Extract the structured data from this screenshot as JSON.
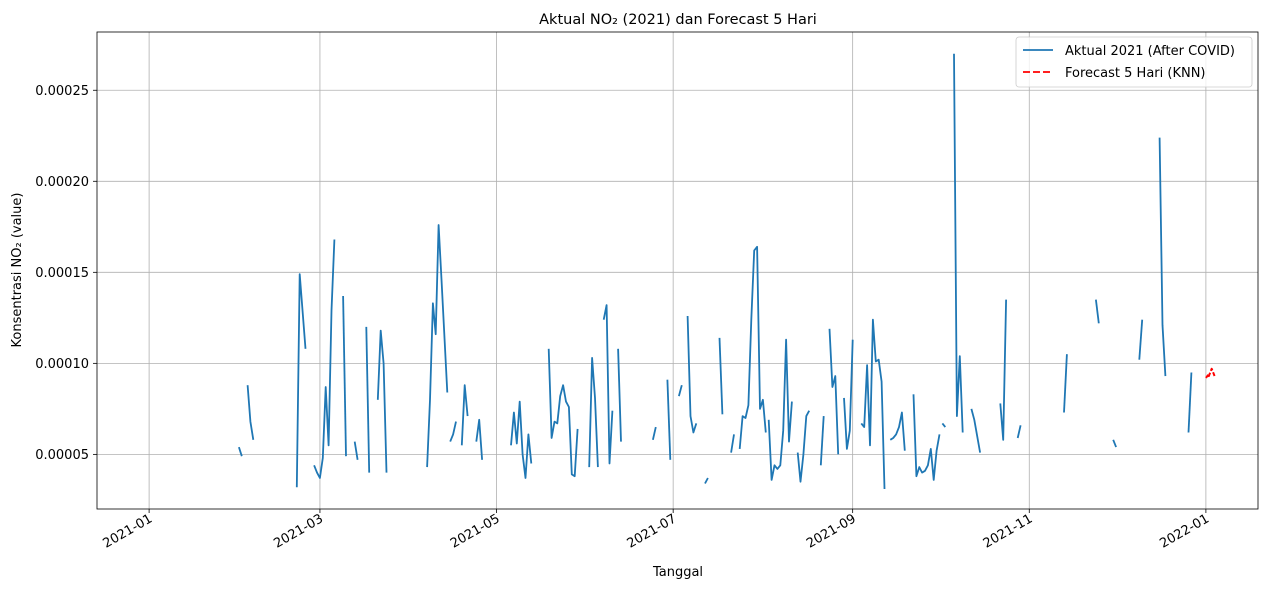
{
  "chart_data": {
    "type": "line",
    "title": "Aktual NO₂ (2021) dan Forecast 5 Hari",
    "xlabel": "Tanggal",
    "ylabel": "Konsentrasi NO₂ (value)",
    "xlim": [
      "2020-12-14",
      "2022-01-19"
    ],
    "ylim": [
      2e-05,
      0.000282
    ],
    "x_ticks": [
      "2021-01",
      "2021-03",
      "2021-05",
      "2021-07",
      "2021-09",
      "2021-11",
      "2022-01"
    ],
    "y_ticks": [
      "0.00005",
      "0.00010",
      "0.00015",
      "0.00020",
      "0.00025"
    ],
    "grid": true,
    "legend_position": "top-right",
    "series": [
      {
        "name": "Aktual 2021 (After COVID)",
        "color": "#1f77b4",
        "style": "solid",
        "segments": [
          [
            [
              "2021-02-01",
              5.4e-05
            ],
            [
              "2021-02-02",
              4.9e-05
            ]
          ],
          [
            [
              "2021-02-04",
              8.8e-05
            ],
            [
              "2021-02-05",
              6.8e-05
            ],
            [
              "2021-02-06",
              5.8e-05
            ]
          ],
          [
            [
              "2021-02-21",
              3.2e-05
            ],
            [
              "2021-02-22",
              0.000149
            ],
            [
              "2021-02-24",
              0.000108
            ]
          ],
          [
            [
              "2021-02-27",
              4.4e-05
            ],
            [
              "2021-02-28",
              4e-05
            ],
            [
              "2021-03-01",
              3.7e-05
            ],
            [
              "2021-03-02",
              4.8e-05
            ],
            [
              "2021-03-03",
              8.7e-05
            ],
            [
              "2021-03-04",
              5.5e-05
            ],
            [
              "2021-03-05",
              0.000129
            ],
            [
              "2021-03-06",
              0.000168
            ]
          ],
          [
            [
              "2021-03-09",
              0.000137
            ],
            [
              "2021-03-10",
              4.9e-05
            ]
          ],
          [
            [
              "2021-03-13",
              5.7e-05
            ],
            [
              "2021-03-14",
              4.7e-05
            ]
          ],
          [
            [
              "2021-03-17",
              0.00012
            ],
            [
              "2021-03-18",
              4e-05
            ]
          ],
          [
            [
              "2021-03-21",
              8e-05
            ],
            [
              "2021-03-22",
              0.000118
            ],
            [
              "2021-03-23",
              0.0001
            ],
            [
              "2021-03-24",
              4e-05
            ]
          ],
          [
            [
              "2021-04-07",
              4.3e-05
            ],
            [
              "2021-04-08",
              8e-05
            ],
            [
              "2021-04-09",
              0.000133
            ],
            [
              "2021-04-10",
              0.000116
            ],
            [
              "2021-04-11",
              0.000176
            ],
            [
              "2021-04-12",
              0.000146
            ],
            [
              "2021-04-14",
              8.4e-05
            ]
          ],
          [
            [
              "2021-04-15",
              5.7e-05
            ],
            [
              "2021-04-16",
              6.1e-05
            ],
            [
              "2021-04-17",
              6.8e-05
            ]
          ],
          [
            [
              "2021-04-19",
              5.5e-05
            ],
            [
              "2021-04-20",
              8.8e-05
            ],
            [
              "2021-04-21",
              7.1e-05
            ]
          ],
          [
            [
              "2021-04-24",
              5.7e-05
            ],
            [
              "2021-04-25",
              6.9e-05
            ],
            [
              "2021-04-26",
              4.7e-05
            ]
          ],
          [
            [
              "2021-05-06",
              5.5e-05
            ],
            [
              "2021-05-07",
              7.3e-05
            ],
            [
              "2021-05-08",
              5.6e-05
            ],
            [
              "2021-05-09",
              7.9e-05
            ],
            [
              "2021-05-10",
              5e-05
            ],
            [
              "2021-05-11",
              3.7e-05
            ],
            [
              "2021-05-12",
              6.1e-05
            ],
            [
              "2021-05-13",
              4.5e-05
            ]
          ],
          [
            [
              "2021-05-19",
              0.000108
            ],
            [
              "2021-05-20",
              5.9e-05
            ],
            [
              "2021-05-21",
              6.8e-05
            ],
            [
              "2021-05-22",
              6.7e-05
            ],
            [
              "2021-05-23",
              8.2e-05
            ],
            [
              "2021-05-24",
              8.8e-05
            ],
            [
              "2021-05-25",
              7.9e-05
            ],
            [
              "2021-05-26",
              7.6e-05
            ],
            [
              "2021-05-27",
              3.9e-05
            ],
            [
              "2021-05-28",
              3.8e-05
            ],
            [
              "2021-05-29",
              6.4e-05
            ]
          ],
          [
            [
              "2021-06-02",
              4.3e-05
            ],
            [
              "2021-06-03",
              0.000103
            ],
            [
              "2021-06-04",
              8.1e-05
            ],
            [
              "2021-06-05",
              4.3e-05
            ]
          ],
          [
            [
              "2021-06-07",
              0.000124
            ],
            [
              "2021-06-08",
              0.000132
            ],
            [
              "2021-06-09",
              4.5e-05
            ],
            [
              "2021-06-10",
              7.4e-05
            ]
          ],
          [
            [
              "2021-06-12",
              0.000108
            ],
            [
              "2021-06-13",
              5.7e-05
            ]
          ],
          [
            [
              "2021-06-24",
              5.8e-05
            ],
            [
              "2021-06-25",
              6.5e-05
            ]
          ],
          [
            [
              "2021-06-29",
              9.1e-05
            ],
            [
              "2021-06-30",
              4.7e-05
            ]
          ],
          [
            [
              "2021-07-03",
              8.2e-05
            ],
            [
              "2021-07-04",
              8.8e-05
            ]
          ],
          [
            [
              "2021-07-06",
              0.000126
            ],
            [
              "2021-07-07",
              7.1e-05
            ],
            [
              "2021-07-08",
              6.2e-05
            ],
            [
              "2021-07-09",
              6.7e-05
            ]
          ],
          [
            [
              "2021-07-12",
              3.4e-05
            ],
            [
              "2021-07-13",
              3.7e-05
            ]
          ],
          [
            [
              "2021-07-17",
              0.000114
            ],
            [
              "2021-07-18",
              7.2e-05
            ]
          ],
          [
            [
              "2021-07-21",
              5.1e-05
            ],
            [
              "2021-07-22",
              6.1e-05
            ]
          ],
          [
            [
              "2021-07-24",
              5.3e-05
            ],
            [
              "2021-07-25",
              7.1e-05
            ],
            [
              "2021-07-26",
              7e-05
            ],
            [
              "2021-07-27",
              7.7e-05
            ],
            [
              "2021-07-28",
              0.000124
            ],
            [
              "2021-07-29",
              0.000162
            ],
            [
              "2021-07-30",
              0.000164
            ],
            [
              "2021-07-31",
              7.5e-05
            ],
            [
              "2021-08-01",
              8e-05
            ],
            [
              "2021-08-02",
              6.2e-05
            ]
          ],
          [
            [
              "2021-08-03",
              6.9e-05
            ],
            [
              "2021-08-04",
              3.6e-05
            ],
            [
              "2021-08-05",
              4.4e-05
            ],
            [
              "2021-08-06",
              4.2e-05
            ],
            [
              "2021-08-07",
              4.4e-05
            ],
            [
              "2021-08-08",
              6.3e-05
            ],
            [
              "2021-08-09",
              0.000113
            ],
            [
              "2021-08-10",
              5.7e-05
            ],
            [
              "2021-08-11",
              7.9e-05
            ]
          ],
          [
            [
              "2021-08-13",
              5.1e-05
            ],
            [
              "2021-08-14",
              3.5e-05
            ],
            [
              "2021-08-15",
              5e-05
            ],
            [
              "2021-08-16",
              7.1e-05
            ],
            [
              "2021-08-17",
              7.4e-05
            ]
          ],
          [
            [
              "2021-08-21",
              4.4e-05
            ],
            [
              "2021-08-22",
              7.1e-05
            ]
          ],
          [
            [
              "2021-08-24",
              0.000119
            ],
            [
              "2021-08-25",
              8.7e-05
            ],
            [
              "2021-08-26",
              9.3e-05
            ],
            [
              "2021-08-27",
              5e-05
            ]
          ],
          [
            [
              "2021-08-29",
              8.1e-05
            ],
            [
              "2021-08-30",
              5.3e-05
            ],
            [
              "2021-08-31",
              6.3e-05
            ],
            [
              "2021-09-01",
              0.000113
            ]
          ],
          [
            [
              "2021-09-04",
              6.7e-05
            ],
            [
              "2021-09-05",
              6.5e-05
            ],
            [
              "2021-09-06",
              9.9e-05
            ],
            [
              "2021-09-07",
              5.5e-05
            ],
            [
              "2021-09-08",
              0.000124
            ],
            [
              "2021-09-09",
              0.000101
            ],
            [
              "2021-09-10",
              0.000102
            ],
            [
              "2021-09-11",
              9e-05
            ],
            [
              "2021-09-12",
              3.1e-05
            ]
          ],
          [
            [
              "2021-09-14",
              5.8e-05
            ],
            [
              "2021-09-15",
              5.9e-05
            ],
            [
              "2021-09-16",
              6.1e-05
            ],
            [
              "2021-09-17",
              6.5e-05
            ],
            [
              "2021-09-18",
              7.3e-05
            ],
            [
              "2021-09-19",
              5.2e-05
            ]
          ],
          [
            [
              "2021-09-22",
              8.3e-05
            ],
            [
              "2021-09-23",
              3.8e-05
            ],
            [
              "2021-09-24",
              4.3e-05
            ],
            [
              "2021-09-25",
              4e-05
            ],
            [
              "2021-09-26",
              4.1e-05
            ],
            [
              "2021-09-27",
              4.4e-05
            ],
            [
              "2021-09-28",
              5.3e-05
            ],
            [
              "2021-09-29",
              3.6e-05
            ],
            [
              "2021-09-30",
              5.2e-05
            ],
            [
              "2021-10-01",
              6.1e-05
            ]
          ],
          [
            [
              "2021-10-02",
              6.7e-05
            ],
            [
              "2021-10-03",
              6.5e-05
            ]
          ],
          [
            [
              "2021-10-06",
              0.00027
            ],
            [
              "2021-10-07",
              7.1e-05
            ],
            [
              "2021-10-08",
              0.000104
            ],
            [
              "2021-10-09",
              6.2e-05
            ]
          ],
          [
            [
              "2021-10-12",
              7.5e-05
            ],
            [
              "2021-10-13",
              6.9e-05
            ],
            [
              "2021-10-14",
              6e-05
            ],
            [
              "2021-10-15",
              5.1e-05
            ]
          ],
          [
            [
              "2021-10-22",
              7.8e-05
            ],
            [
              "2021-10-23",
              5.8e-05
            ],
            [
              "2021-10-24",
              0.000135
            ]
          ],
          [
            [
              "2021-10-28",
              5.9e-05
            ],
            [
              "2021-10-29",
              6.6e-05
            ]
          ],
          [
            [
              "2021-11-13",
              7.3e-05
            ],
            [
              "2021-11-14",
              0.000105
            ]
          ],
          [
            [
              "2021-11-24",
              0.000135
            ],
            [
              "2021-11-25",
              0.000122
            ]
          ],
          [
            [
              "2021-11-30",
              5.8e-05
            ],
            [
              "2021-12-01",
              5.4e-05
            ]
          ],
          [
            [
              "2021-12-09",
              0.000102
            ],
            [
              "2021-12-10",
              0.000124
            ]
          ],
          [
            [
              "2021-12-16",
              0.000224
            ],
            [
              "2021-12-17",
              0.000121
            ],
            [
              "2021-12-18",
              9.3e-05
            ]
          ],
          [
            [
              "2021-12-26",
              6.2e-05
            ],
            [
              "2021-12-27",
              9.5e-05
            ]
          ]
        ]
      },
      {
        "name": "Forecast 5 Hari (KNN)",
        "color": "#ff0000",
        "style": "dashed",
        "segments": [
          [
            [
              "2022-01-01",
              9.2e-05
            ],
            [
              "2022-01-02",
              9.4e-05
            ],
            [
              "2022-01-02",
              9.3e-05
            ],
            [
              "2022-01-03",
              9.7e-05
            ],
            [
              "2022-01-04",
              9.3e-05
            ]
          ]
        ]
      }
    ]
  }
}
